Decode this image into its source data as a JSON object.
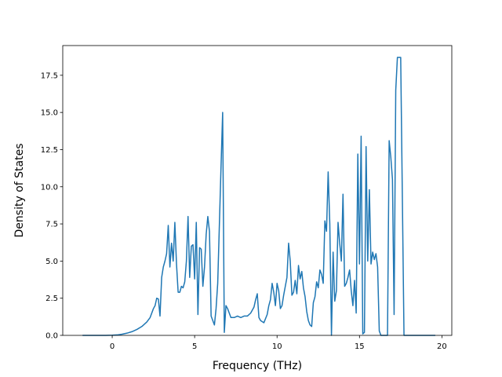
{
  "chart_data": {
    "type": "line",
    "title": "",
    "xlabel": "Frequency (THz)",
    "ylabel": "Density of States",
    "xlim": [
      -3.0,
      20.6
    ],
    "ylim": [
      0,
      19.5
    ],
    "xticks": [
      0,
      5,
      10,
      15,
      20
    ],
    "xtick_labels": [
      "0",
      "5",
      "10",
      "15",
      "20"
    ],
    "yticks": [
      0,
      2.5,
      5,
      7.5,
      10,
      12.5,
      15,
      17.5
    ],
    "ytick_labels": [
      "0.0",
      "2.5",
      "5.0",
      "7.5",
      "10.0",
      "12.5",
      "15.0",
      "17.5"
    ],
    "grid": false,
    "colors": {
      "line": "#1f77b4"
    },
    "series": [
      {
        "points": [
          [
            -1.8,
            0
          ],
          [
            -1.0,
            0
          ],
          [
            -0.4,
            0
          ],
          [
            0.0,
            0.01
          ],
          [
            0.3,
            0.03
          ],
          [
            0.6,
            0.08
          ],
          [
            0.9,
            0.15
          ],
          [
            1.2,
            0.25
          ],
          [
            1.5,
            0.4
          ],
          [
            1.8,
            0.6
          ],
          [
            2.1,
            0.9
          ],
          [
            2.3,
            1.2
          ],
          [
            2.5,
            1.8
          ],
          [
            2.6,
            2.0
          ],
          [
            2.7,
            2.5
          ],
          [
            2.8,
            2.45
          ],
          [
            2.9,
            1.3
          ],
          [
            3.0,
            3.9
          ],
          [
            3.1,
            4.6
          ],
          [
            3.2,
            5.0
          ],
          [
            3.3,
            5.5
          ],
          [
            3.4,
            7.4
          ],
          [
            3.5,
            4.6
          ],
          [
            3.6,
            6.2
          ],
          [
            3.7,
            5.0
          ],
          [
            3.8,
            7.6
          ],
          [
            3.9,
            4.8
          ],
          [
            4.0,
            2.9
          ],
          [
            4.1,
            2.9
          ],
          [
            4.2,
            3.3
          ],
          [
            4.3,
            3.2
          ],
          [
            4.4,
            3.6
          ],
          [
            4.5,
            5.0
          ],
          [
            4.6,
            8.0
          ],
          [
            4.7,
            3.9
          ],
          [
            4.8,
            6.0
          ],
          [
            4.9,
            6.1
          ],
          [
            5.0,
            3.8
          ],
          [
            5.1,
            7.6
          ],
          [
            5.2,
            1.4
          ],
          [
            5.3,
            5.9
          ],
          [
            5.4,
            5.8
          ],
          [
            5.5,
            3.3
          ],
          [
            5.6,
            4.6
          ],
          [
            5.7,
            6.8
          ],
          [
            5.8,
            8.0
          ],
          [
            5.9,
            7.0
          ],
          [
            6.0,
            1.3
          ],
          [
            6.2,
            0.7
          ],
          [
            6.3,
            1.8
          ],
          [
            6.4,
            3.5
          ],
          [
            6.6,
            11.3
          ],
          [
            6.7,
            15.0
          ],
          [
            6.8,
            0.2
          ],
          [
            6.9,
            2.0
          ],
          [
            7.0,
            1.8
          ],
          [
            7.2,
            1.2
          ],
          [
            7.4,
            1.2
          ],
          [
            7.6,
            1.3
          ],
          [
            7.8,
            1.2
          ],
          [
            8.0,
            1.3
          ],
          [
            8.2,
            1.3
          ],
          [
            8.4,
            1.5
          ],
          [
            8.6,
            1.9
          ],
          [
            8.7,
            2.4
          ],
          [
            8.8,
            2.8
          ],
          [
            8.9,
            1.2
          ],
          [
            9.0,
            1.0
          ],
          [
            9.2,
            0.85
          ],
          [
            9.4,
            1.4
          ],
          [
            9.5,
            2.0
          ],
          [
            9.6,
            2.4
          ],
          [
            9.7,
            3.5
          ],
          [
            9.8,
            2.9
          ],
          [
            9.9,
            2.0
          ],
          [
            10.0,
            3.5
          ],
          [
            10.1,
            3.0
          ],
          [
            10.2,
            1.8
          ],
          [
            10.3,
            2.0
          ],
          [
            10.4,
            2.7
          ],
          [
            10.5,
            3.3
          ],
          [
            10.6,
            3.9
          ],
          [
            10.7,
            6.2
          ],
          [
            10.8,
            5.0
          ],
          [
            10.9,
            2.7
          ],
          [
            11.0,
            2.9
          ],
          [
            11.1,
            3.7
          ],
          [
            11.2,
            2.8
          ],
          [
            11.3,
            4.7
          ],
          [
            11.4,
            3.8
          ],
          [
            11.5,
            4.3
          ],
          [
            11.6,
            3.2
          ],
          [
            11.7,
            2.6
          ],
          [
            11.8,
            1.6
          ],
          [
            11.9,
            1.0
          ],
          [
            12.0,
            0.7
          ],
          [
            12.1,
            0.6
          ],
          [
            12.2,
            2.2
          ],
          [
            12.3,
            2.6
          ],
          [
            12.4,
            3.6
          ],
          [
            12.5,
            3.2
          ],
          [
            12.6,
            4.4
          ],
          [
            12.7,
            4.1
          ],
          [
            12.8,
            3.5
          ],
          [
            12.9,
            7.7
          ],
          [
            13.0,
            7.0
          ],
          [
            13.1,
            11.0
          ],
          [
            13.2,
            7.5
          ],
          [
            13.3,
            0
          ],
          [
            13.4,
            5.6
          ],
          [
            13.5,
            2.3
          ],
          [
            13.6,
            3.0
          ],
          [
            13.7,
            7.6
          ],
          [
            13.8,
            6.2
          ],
          [
            13.9,
            5.0
          ],
          [
            14.0,
            9.5
          ],
          [
            14.1,
            3.3
          ],
          [
            14.2,
            3.5
          ],
          [
            14.3,
            3.9
          ],
          [
            14.4,
            4.4
          ],
          [
            14.5,
            3.0
          ],
          [
            14.6,
            2.0
          ],
          [
            14.7,
            3.7
          ],
          [
            14.8,
            1.5
          ],
          [
            14.9,
            12.2
          ],
          [
            15.0,
            4.8
          ],
          [
            15.1,
            13.4
          ],
          [
            15.2,
            0.1
          ],
          [
            15.3,
            0.2
          ],
          [
            15.4,
            12.7
          ],
          [
            15.5,
            5.0
          ],
          [
            15.6,
            9.8
          ],
          [
            15.7,
            4.8
          ],
          [
            15.8,
            5.6
          ],
          [
            15.9,
            5.1
          ],
          [
            16.0,
            5.5
          ],
          [
            16.1,
            4.6
          ],
          [
            16.2,
            0.3
          ],
          [
            16.3,
            0
          ],
          [
            16.7,
            0
          ],
          [
            16.8,
            13.1
          ],
          [
            16.9,
            12.0
          ],
          [
            17.0,
            10.5
          ],
          [
            17.1,
            1.4
          ],
          [
            17.2,
            16.5
          ],
          [
            17.3,
            18.7
          ],
          [
            17.5,
            18.7
          ],
          [
            17.7,
            0
          ],
          [
            18.5,
            0
          ],
          [
            19.6,
            0
          ]
        ]
      }
    ]
  }
}
